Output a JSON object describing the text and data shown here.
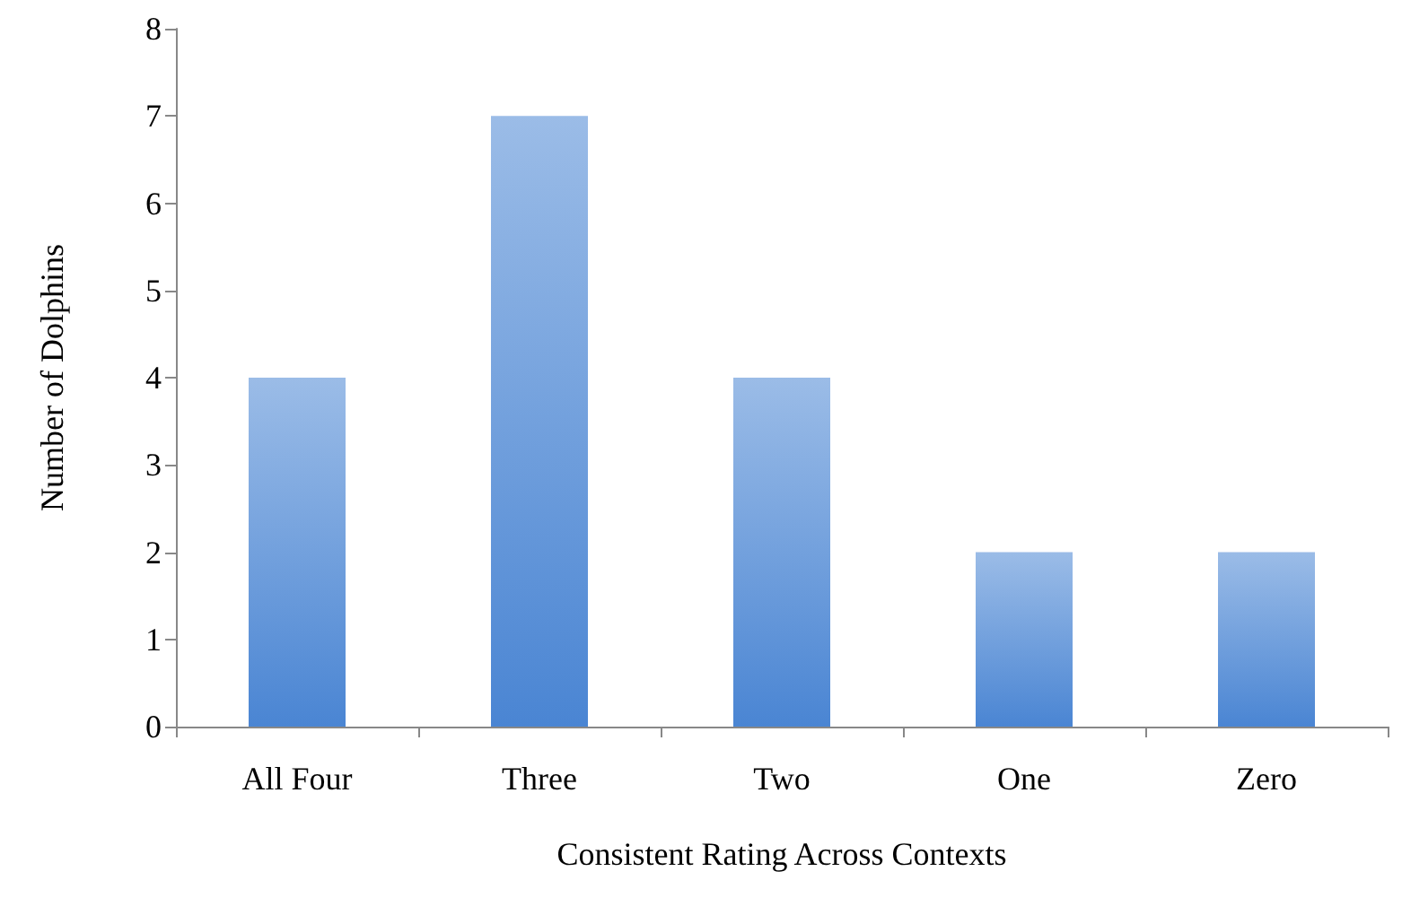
{
  "chart_data": {
    "type": "bar",
    "xlabel": "Consistent Rating Across Contexts",
    "ylabel": "Number of Dolphins",
    "categories": [
      "All Four",
      "Three",
      "Two",
      "One",
      "Zero"
    ],
    "values": [
      4,
      7,
      4,
      2,
      2
    ],
    "color": "#4a85d3",
    "ylim": [
      0,
      8
    ],
    "yticks": [
      0,
      1,
      2,
      3,
      4,
      5,
      6,
      7,
      8
    ],
    "grid": false
  }
}
